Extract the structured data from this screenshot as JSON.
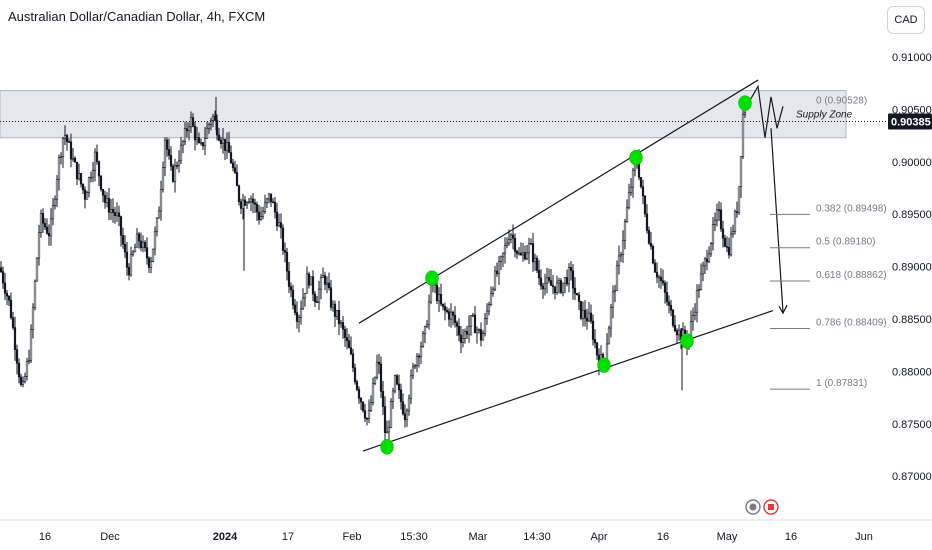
{
  "header": {
    "symbol_title": "Australian Dollar/Canadian Dollar, 4h, FXCM",
    "currency_button": "CAD"
  },
  "colors": {
    "candle": "#131722",
    "zone_fill": "#d1d4dc",
    "pivot_marker": "#00e000",
    "price_tag_bg": "#131722",
    "fib_line": "#787b86"
  },
  "chart_data": {
    "type": "candlestick",
    "title": "Australian Dollar/Canadian Dollar, 4h, FXCM",
    "y_axis": {
      "ticks": [
        "0.91000",
        "0.90500",
        "0.90000",
        "0.89500",
        "0.89000",
        "0.88500",
        "0.88000",
        "0.87500",
        "0.87000"
      ],
      "range": [
        0.8665,
        0.914
      ],
      "position": "right"
    },
    "x_axis": {
      "ticks": [
        "16",
        "Dec",
        "2024",
        "17",
        "Feb",
        "15:30",
        "Mar",
        "14:30",
        "Apr",
        "16",
        "May",
        "16",
        "Jun"
      ]
    },
    "current_price": "0.90385",
    "price_path": [
      [
        0,
        0.8899
      ],
      [
        10,
        0.8862
      ],
      [
        22,
        0.8778
      ],
      [
        30,
        0.8822
      ],
      [
        40,
        0.8946
      ],
      [
        50,
        0.8931
      ],
      [
        58,
        0.8995
      ],
      [
        64,
        0.9029
      ],
      [
        75,
        0.8995
      ],
      [
        85,
        0.8968
      ],
      [
        95,
        0.9006
      ],
      [
        105,
        0.8962
      ],
      [
        118,
        0.8946
      ],
      [
        128,
        0.8895
      ],
      [
        138,
        0.8928
      ],
      [
        150,
        0.8903
      ],
      [
        158,
        0.8946
      ],
      [
        165,
        0.9023
      ],
      [
        172,
        0.8984
      ],
      [
        182,
        0.9015
      ],
      [
        190,
        0.9042
      ],
      [
        200,
        0.901
      ],
      [
        212,
        0.9045
      ],
      [
        220,
        0.9025
      ],
      [
        230,
        0.9006
      ],
      [
        240,
        0.8961
      ],
      [
        250,
        0.8968
      ],
      [
        260,
        0.8946
      ],
      [
        270,
        0.8968
      ],
      [
        280,
        0.8936
      ],
      [
        290,
        0.888
      ],
      [
        298,
        0.8851
      ],
      [
        308,
        0.8892
      ],
      [
        316,
        0.8869
      ],
      [
        324,
        0.8892
      ],
      [
        332,
        0.8862
      ],
      [
        340,
        0.8846
      ],
      [
        350,
        0.8817
      ],
      [
        358,
        0.8782
      ],
      [
        368,
        0.8752
      ],
      [
        378,
        0.8813
      ],
      [
        386,
        0.8733
      ],
      [
        395,
        0.879
      ],
      [
        405,
        0.8759
      ],
      [
        415,
        0.8811
      ],
      [
        425,
        0.8836
      ],
      [
        432,
        0.8887
      ],
      [
        442,
        0.8859
      ],
      [
        452,
        0.8853
      ],
      [
        462,
        0.8831
      ],
      [
        472,
        0.8849
      ],
      [
        482,
        0.8831
      ],
      [
        492,
        0.8883
      ],
      [
        500,
        0.89
      ],
      [
        510,
        0.8935
      ],
      [
        520,
        0.8908
      ],
      [
        530,
        0.892
      ],
      [
        540,
        0.8887
      ],
      [
        550,
        0.8882
      ],
      [
        560,
        0.888
      ],
      [
        570,
        0.8894
      ],
      [
        580,
        0.8857
      ],
      [
        590,
        0.8849
      ],
      [
        598,
        0.8813
      ],
      [
        604,
        0.8808
      ],
      [
        612,
        0.8866
      ],
      [
        622,
        0.8922
      ],
      [
        630,
        0.8973
      ],
      [
        637,
        0.9004
      ],
      [
        645,
        0.8949
      ],
      [
        655,
        0.8899
      ],
      [
        662,
        0.8883
      ],
      [
        670,
        0.8857
      ],
      [
        678,
        0.8838
      ],
      [
        688,
        0.8829
      ],
      [
        698,
        0.8878
      ],
      [
        708,
        0.8915
      ],
      [
        718,
        0.8952
      ],
      [
        728,
        0.8913
      ],
      [
        738,
        0.8961
      ],
      [
        743,
        0.9045
      ],
      [
        746,
        0.9053
      ]
    ],
    "trend_channel": {
      "upper_line": [
        [
          "Feb (start)",
          0.8846
        ],
        [
          "May",
          0.9078
        ]
      ],
      "lower_line": [
        [
          "Feb (start)",
          0.8724
        ],
        [
          "May",
          0.8858
        ]
      ]
    },
    "swing_points": [
      {
        "x": "Feb",
        "value": 0.8728
      },
      {
        "x": "Feb",
        "value": 0.8889
      },
      {
        "x": "Apr",
        "value": 0.8806
      },
      {
        "x": "Apr",
        "value": 0.9004
      },
      {
        "x": "Apr",
        "value": 0.8829
      },
      {
        "x": "May",
        "value": 0.9056
      }
    ],
    "supply_zone": {
      "label": "Supply Zone",
      "top": 0.9068,
      "bottom": 0.9023
    },
    "fibonacci_levels": [
      {
        "label": "0 (0.90528)",
        "value": 0.90528
      },
      {
        "label": "0.382 (0.89498)",
        "value": 0.89498
      },
      {
        "label": "0.5 (0.89180)",
        "value": 0.8918
      },
      {
        "label": "0.618 (0.88862)",
        "value": 0.88862
      },
      {
        "label": "0.786 (0.88409)",
        "value": 0.88409
      },
      {
        "label": "1 (0.87831)",
        "value": 0.87831
      }
    ],
    "projected_path": [
      0.9053,
      0.9062,
      0.9072,
      0.9023,
      0.9062,
      0.9032,
      0.9053,
      0.8868
    ],
    "grid": false,
    "legend": "none"
  }
}
